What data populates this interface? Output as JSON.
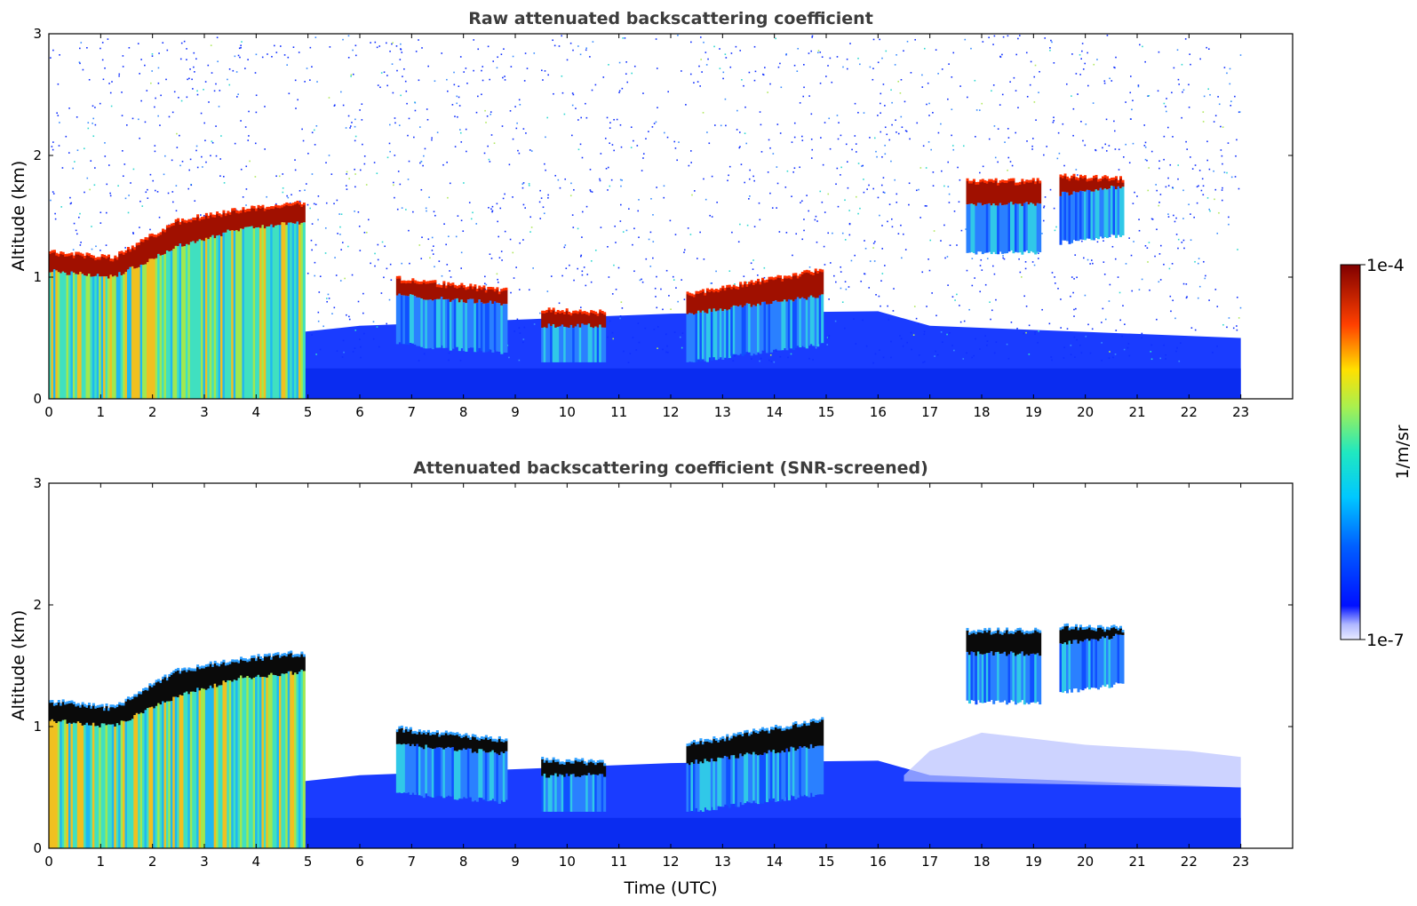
{
  "chart_data": [
    {
      "type": "heatmap",
      "title": "Raw attenuated backscattering coefficient",
      "xlabel": "",
      "ylabel": "Altitude (km)",
      "xlim": [
        0,
        24
      ],
      "ylim": [
        0,
        3
      ],
      "x_ticks": [
        "0",
        "1",
        "2",
        "3",
        "4",
        "5",
        "6",
        "7",
        "8",
        "9",
        "10",
        "11",
        "12",
        "13",
        "14",
        "15",
        "16",
        "17",
        "18",
        "19",
        "20",
        "21",
        "22",
        "23"
      ],
      "y_ticks": [
        "0",
        "1",
        "2",
        "3"
      ],
      "data_end_time": 23,
      "cloud_layers": [
        {
          "start": 0.0,
          "end": 4.9,
          "base_km": [
            1.05,
            1.0,
            1.25,
            1.4,
            1.45
          ],
          "note_top_km": [
            1.2,
            1.15,
            1.45,
            1.55,
            1.6
          ]
        },
        {
          "start": 6.7,
          "end": 8.8,
          "base_km": [
            0.85,
            0.78
          ],
          "note_top_km": [
            0.98,
            0.88
          ]
        },
        {
          "start": 9.5,
          "end": 10.7,
          "base_km": [
            0.6,
            0.6
          ],
          "note_top_km": [
            0.72,
            0.7
          ]
        },
        {
          "start": 12.3,
          "end": 14.9,
          "base_km": [
            0.7,
            0.85
          ],
          "note_top_km": [
            0.85,
            1.05
          ]
        },
        {
          "start": 17.7,
          "end": 19.1,
          "base_km": [
            1.6,
            1.6
          ],
          "note_top_km": [
            1.78,
            1.78
          ]
        },
        {
          "start": 19.5,
          "end": 20.7,
          "base_km": [
            1.68,
            1.75
          ],
          "note_top_km": [
            1.82,
            1.8
          ]
        }
      ]
    },
    {
      "type": "heatmap",
      "title": "Attenuated backscattering coefficient (SNR-screened)",
      "xlabel": "Time (UTC)",
      "ylabel": "Altitude (km)",
      "xlim": [
        0,
        24
      ],
      "ylim": [
        0,
        3
      ],
      "x_ticks": [
        "0",
        "1",
        "2",
        "3",
        "4",
        "5",
        "6",
        "7",
        "8",
        "9",
        "10",
        "11",
        "12",
        "13",
        "14",
        "15",
        "16",
        "17",
        "18",
        "19",
        "20",
        "21",
        "22",
        "23"
      ],
      "y_ticks": [
        "0",
        "1",
        "2",
        "3"
      ],
      "data_end_time": 23
    }
  ],
  "colorbar": {
    "label": "1/m/sr",
    "max_label": "1e-4",
    "min_label": "1e-7",
    "scale": "log",
    "colormap": "jet"
  }
}
